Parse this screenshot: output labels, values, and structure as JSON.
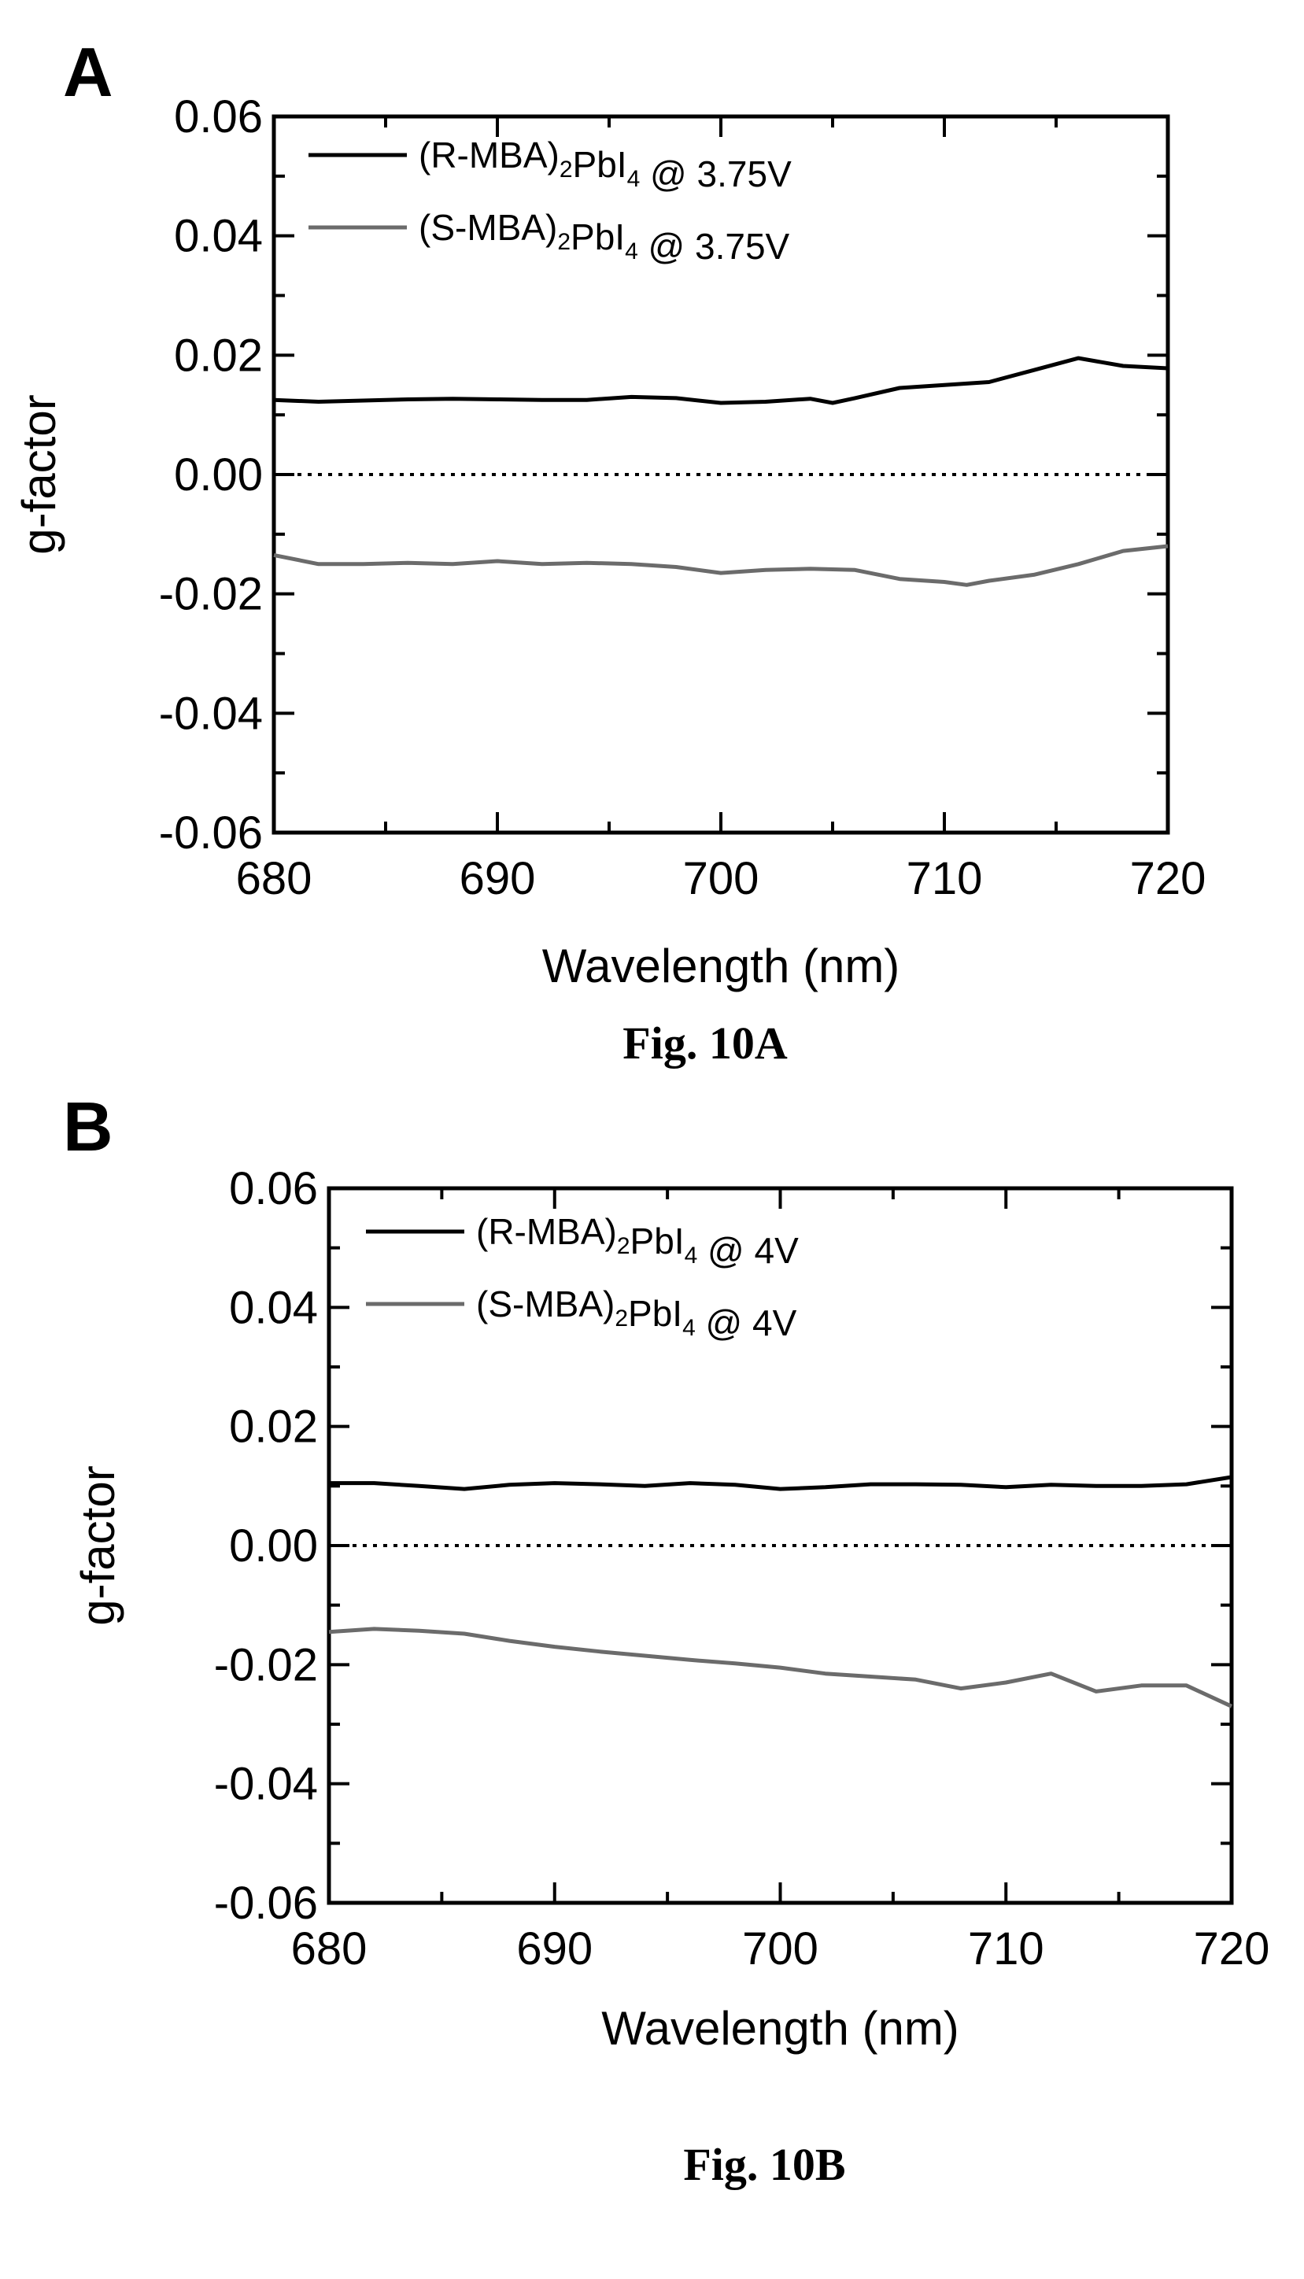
{
  "chart_data": [
    {
      "type": "line",
      "panel": "A",
      "caption": "Fig. 10A",
      "xlabel": "Wavelength (nm)",
      "ylabel": "g-factor",
      "xlim": [
        680,
        720
      ],
      "ylim": [
        -0.06,
        0.06
      ],
      "xticks": [
        680,
        690,
        700,
        710,
        720
      ],
      "yticks": [
        0.06,
        0.04,
        0.02,
        0.0,
        -0.02,
        -0.04,
        -0.06
      ],
      "ytick_labels": [
        "0.06",
        "0.04",
        "0.02",
        "0.00",
        "-0.02",
        "-0.04",
        "-0.06"
      ],
      "legend_position": "top-left",
      "reference_line": {
        "y": 0.0,
        "style": "dotted"
      },
      "series": [
        {
          "name": "(R-MBA)2PbI4 @ 3.75V",
          "legend": {
            "pre": "(R-MBA)",
            "sub1": "2",
            "mid": "PbI",
            "sub2": "4",
            "post": " @ 3.75V"
          },
          "color": "#000000",
          "x": [
            680,
            682,
            684,
            686,
            688,
            690,
            692,
            694,
            696,
            698,
            700,
            702,
            704,
            705,
            706,
            708,
            710,
            712,
            714,
            715,
            716,
            718,
            720
          ],
          "y": [
            0.0125,
            0.0122,
            0.0124,
            0.0126,
            0.0127,
            0.0126,
            0.0125,
            0.0125,
            0.013,
            0.0128,
            0.012,
            0.0122,
            0.0127,
            0.012,
            0.0128,
            0.0145,
            0.015,
            0.0155,
            0.0175,
            0.0185,
            0.0195,
            0.0182,
            0.0178
          ]
        },
        {
          "name": "(S-MBA)2PbI4 @ 3.75V",
          "legend": {
            "pre": "(S-MBA)",
            "sub1": "2",
            "mid": "PbI",
            "sub2": "4",
            "post": " @ 3.75V"
          },
          "color": "#6b6b6b",
          "x": [
            680,
            682,
            684,
            686,
            688,
            690,
            692,
            694,
            696,
            698,
            700,
            702,
            704,
            706,
            708,
            710,
            711,
            712,
            714,
            716,
            718,
            720
          ],
          "y": [
            -0.0135,
            -0.015,
            -0.015,
            -0.0148,
            -0.015,
            -0.0145,
            -0.015,
            -0.0148,
            -0.015,
            -0.0155,
            -0.0165,
            -0.016,
            -0.0158,
            -0.016,
            -0.0175,
            -0.018,
            -0.0185,
            -0.0178,
            -0.0168,
            -0.015,
            -0.0128,
            -0.012
          ]
        }
      ]
    },
    {
      "type": "line",
      "panel": "B",
      "caption": "Fig. 10B",
      "xlabel": "Wavelength (nm)",
      "ylabel": "g-factor",
      "xlim": [
        680,
        720
      ],
      "ylim": [
        -0.06,
        0.06
      ],
      "xticks": [
        680,
        690,
        700,
        710,
        720
      ],
      "yticks": [
        0.06,
        0.04,
        0.02,
        0.0,
        -0.02,
        -0.04,
        -0.06
      ],
      "ytick_labels": [
        "0.06",
        "0.04",
        "0.02",
        "0.00",
        "-0.02",
        "-0.04",
        "-0.06"
      ],
      "legend_position": "top-left",
      "reference_line": {
        "y": 0.0,
        "style": "dotted"
      },
      "series": [
        {
          "name": "(R-MBA)2PbI4 @ 4V",
          "legend": {
            "pre": "(R-MBA)",
            "sub1": "2",
            "mid": "PbI",
            "sub2": "4",
            "post": " @ 4V"
          },
          "color": "#000000",
          "x": [
            680,
            682,
            684,
            686,
            688,
            690,
            692,
            694,
            696,
            698,
            700,
            702,
            704,
            706,
            708,
            710,
            712,
            714,
            716,
            718,
            720
          ],
          "y": [
            0.0105,
            0.0105,
            0.01,
            0.0095,
            0.0102,
            0.0105,
            0.0103,
            0.01,
            0.0105,
            0.0102,
            0.0095,
            0.0098,
            0.0103,
            0.0103,
            0.0102,
            0.0098,
            0.0102,
            0.01,
            0.01,
            0.0103,
            0.0115
          ]
        },
        {
          "name": "(S-MBA)2PbI4 @ 4V",
          "legend": {
            "pre": "(S-MBA)",
            "sub1": "2",
            "mid": "PbI",
            "sub2": "4",
            "post": " @ 4V"
          },
          "color": "#6b6b6b",
          "x": [
            680,
            682,
            684,
            686,
            688,
            690,
            692,
            694,
            696,
            698,
            700,
            702,
            704,
            706,
            708,
            710,
            712,
            714,
            716,
            718,
            720
          ],
          "y": [
            -0.0145,
            -0.014,
            -0.0143,
            -0.0148,
            -0.016,
            -0.017,
            -0.0178,
            -0.0185,
            -0.0192,
            -0.0198,
            -0.0205,
            -0.0215,
            -0.022,
            -0.0225,
            -0.024,
            -0.023,
            -0.0215,
            -0.0245,
            -0.0235,
            -0.0235,
            -0.027
          ]
        }
      ]
    }
  ]
}
